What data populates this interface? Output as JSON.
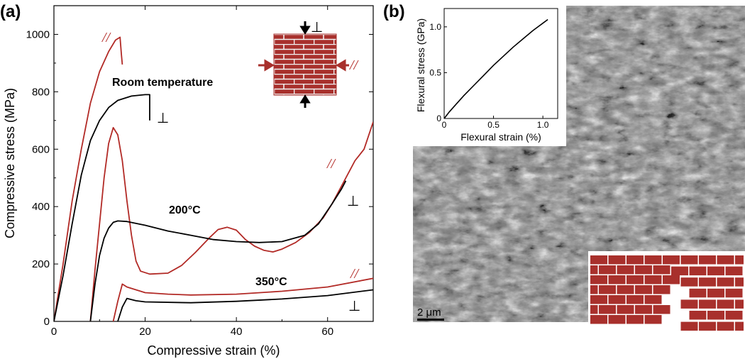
{
  "panel_a": {
    "label": "(a)"
  },
  "panel_b": {
    "label": "(b)"
  },
  "colors": {
    "black_series": "#000000",
    "red_series": "#b22a26",
    "brick": "#a8302c",
    "mortar": "#f2f2f2"
  },
  "annotations": {
    "room_temperature": "Room temperature",
    "t200": "200°C",
    "t350": "350°C",
    "parallel": "//",
    "perpendicular": "⊥"
  },
  "chart_data": [
    {
      "type": "line",
      "xlabel": "Compressive strain (%)",
      "ylabel": "Compressive stress (MPa)",
      "xlim": [
        0,
        70
      ],
      "ylim": [
        0,
        1100
      ],
      "xticks": [
        0,
        20,
        40,
        60
      ],
      "yticks": [
        0,
        200,
        400,
        600,
        800,
        1000
      ],
      "grid": false,
      "series": [
        {
          "color": "#b22a26",
          "points": [
            [
              0,
              0
            ],
            [
              2,
              200
            ],
            [
              4,
              420
            ],
            [
              6,
              600
            ],
            [
              8,
              760
            ],
            [
              10,
              870
            ],
            [
              12,
              940
            ],
            [
              13.5,
              980
            ],
            [
              14.5,
              990
            ],
            [
              14.8,
              930
            ],
            [
              15,
              895
            ]
          ]
        },
        {
          "color": "#000000",
          "points": [
            [
              0,
              0
            ],
            [
              2,
              160
            ],
            [
              4,
              340
            ],
            [
              6,
              510
            ],
            [
              8,
              630
            ],
            [
              10,
              700
            ],
            [
              12,
              745
            ],
            [
              14,
              770
            ],
            [
              17,
              785
            ],
            [
              20,
              790
            ],
            [
              21,
              790
            ],
            [
              21,
              700
            ]
          ]
        },
        {
          "color": "#b22a26",
          "points": [
            [
              8,
              0
            ],
            [
              9,
              180
            ],
            [
              10,
              340
            ],
            [
              11,
              500
            ],
            [
              12,
              620
            ],
            [
              13,
              675
            ],
            [
              14,
              650
            ],
            [
              15,
              560
            ],
            [
              16,
              420
            ],
            [
              17,
              300
            ],
            [
              18,
              210
            ],
            [
              19,
              175
            ],
            [
              21,
              165
            ],
            [
              25,
              168
            ],
            [
              28,
              195
            ],
            [
              31,
              240
            ],
            [
              34,
              290
            ],
            [
              36,
              320
            ],
            [
              38,
              328
            ],
            [
              40,
              318
            ],
            [
              42,
              285
            ],
            [
              44,
              262
            ],
            [
              46,
              248
            ],
            [
              48,
              242
            ],
            [
              50,
              252
            ],
            [
              53,
              275
            ],
            [
              56,
              310
            ],
            [
              59,
              360
            ],
            [
              61,
              410
            ],
            [
              63,
              470
            ],
            [
              65,
              530
            ],
            [
              66,
              560
            ],
            [
              67,
              580
            ],
            [
              68,
              600
            ],
            [
              70,
              695
            ]
          ]
        },
        {
          "color": "#000000",
          "points": [
            [
              8,
              0
            ],
            [
              9,
              130
            ],
            [
              10,
              230
            ],
            [
              11,
              290
            ],
            [
              12,
              325
            ],
            [
              13,
              345
            ],
            [
              14,
              350
            ],
            [
              16,
              348
            ],
            [
              20,
              335
            ],
            [
              25,
              315
            ],
            [
              30,
              300
            ],
            [
              35,
              285
            ],
            [
              40,
              278
            ],
            [
              45,
              275
            ],
            [
              50,
              278
            ],
            [
              55,
              300
            ],
            [
              58,
              340
            ],
            [
              61,
              410
            ],
            [
              63,
              460
            ],
            [
              64,
              490
            ]
          ]
        },
        {
          "color": "#b22a26",
          "points": [
            [
              13,
              0
            ],
            [
              14,
              70
            ],
            [
              15,
              130
            ],
            [
              16,
              120
            ],
            [
              18,
              110
            ],
            [
              20,
              100
            ],
            [
              25,
              95
            ],
            [
              30,
              92
            ],
            [
              40,
              95
            ],
            [
              50,
              105
            ],
            [
              60,
              120
            ],
            [
              70,
              150
            ]
          ]
        },
        {
          "color": "#000000",
          "points": [
            [
              14,
              0
            ],
            [
              15,
              50
            ],
            [
              16,
              80
            ],
            [
              18,
              72
            ],
            [
              20,
              68
            ],
            [
              30,
              65
            ],
            [
              40,
              70
            ],
            [
              50,
              78
            ],
            [
              60,
              90
            ],
            [
              70,
              110
            ]
          ]
        }
      ]
    },
    {
      "type": "line",
      "xlabel": "Flexural strain (%)",
      "ylabel": "Flexural stress (GPa)",
      "xlim": [
        0,
        1.15
      ],
      "ylim": [
        0,
        1.2
      ],
      "xticks": [
        0,
        0.5,
        1
      ],
      "xtick_labels": [
        "0",
        "0.5",
        "1.0"
      ],
      "yticks": [
        0,
        0.5,
        1
      ],
      "ytick_labels": [
        "0",
        "0.5",
        "1.0"
      ],
      "grid": false,
      "series": [
        {
          "color": "#000000",
          "points": [
            [
              0,
              0
            ],
            [
              0.05,
              0.07
            ],
            [
              0.1,
              0.13
            ],
            [
              0.2,
              0.25
            ],
            [
              0.3,
              0.36
            ],
            [
              0.4,
              0.47
            ],
            [
              0.5,
              0.58
            ],
            [
              0.6,
              0.68
            ],
            [
              0.7,
              0.78
            ],
            [
              0.8,
              0.87
            ],
            [
              0.9,
              0.96
            ],
            [
              1.0,
              1.04
            ],
            [
              1.05,
              1.08
            ]
          ]
        }
      ]
    }
  ],
  "scale_bar": {
    "label": "2 μm"
  }
}
